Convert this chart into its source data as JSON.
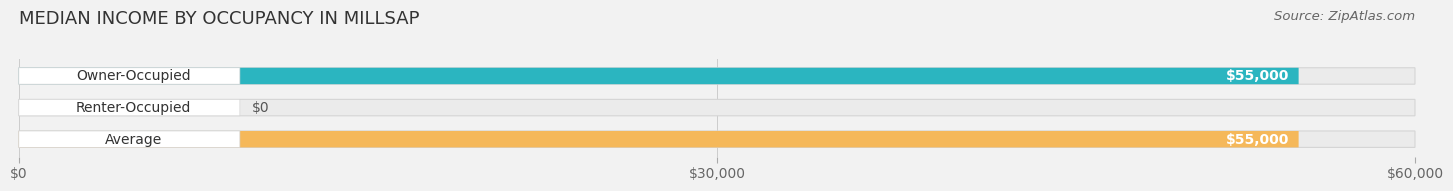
{
  "title": "MEDIAN INCOME BY OCCUPANCY IN MILLSAP",
  "source": "Source: ZipAtlas.com",
  "categories": [
    "Owner-Occupied",
    "Renter-Occupied",
    "Average"
  ],
  "values": [
    55000,
    0,
    55000
  ],
  "bar_colors": [
    "#2bb5c0",
    "#c8afd4",
    "#f5b85a"
  ],
  "bar_labels": [
    "$55,000",
    "$0",
    "$55,000"
  ],
  "xlim": [
    0,
    60000
  ],
  "xtick_vals": [
    0,
    30000,
    60000
  ],
  "xtick_labels": [
    "$0",
    "$30,000",
    "$60,000"
  ],
  "background_color": "#f2f2f2",
  "title_fontsize": 13,
  "label_fontsize": 10,
  "value_fontsize": 10,
  "tick_fontsize": 10,
  "source_fontsize": 9.5
}
